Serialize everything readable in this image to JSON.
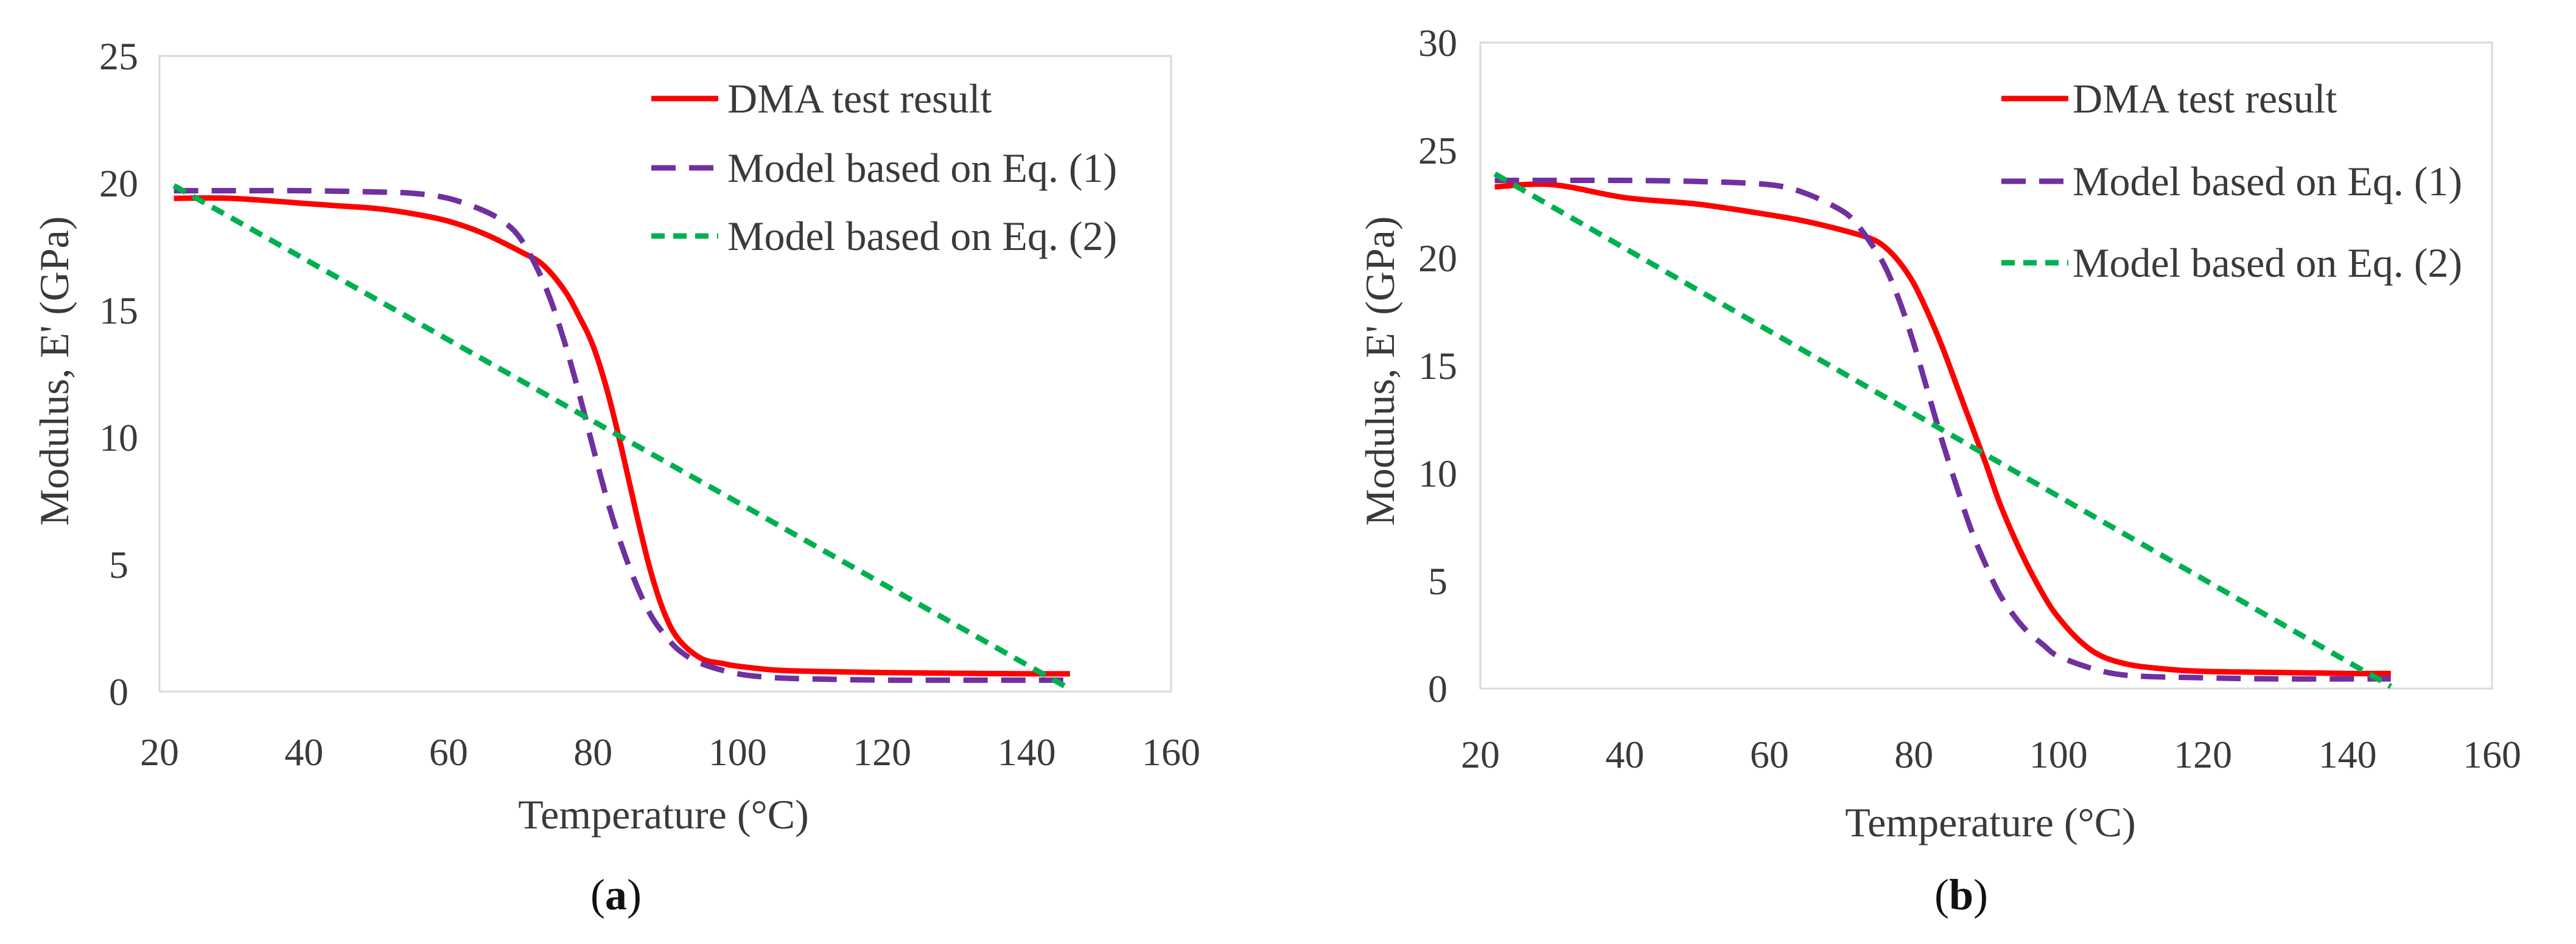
{
  "chart_data": [
    {
      "type": "line",
      "panel_label": "a",
      "xlabel": "Temperature (°C)",
      "ylabel": "Modulus, E' (GPa)",
      "xlim": [
        20,
        160
      ],
      "ylim": [
        0,
        25
      ],
      "xticks": [
        20,
        40,
        60,
        80,
        100,
        120,
        140,
        160
      ],
      "yticks": [
        0,
        5,
        10,
        15,
        20,
        25
      ],
      "grid": false,
      "legend_position": "top-right",
      "series": [
        {
          "name": "DMA test result",
          "style": "solid",
          "color": "#ff0000",
          "x": [
            22,
            30,
            40,
            45,
            50,
            55,
            60,
            65,
            70,
            73,
            76,
            78,
            80,
            82,
            84,
            86,
            88,
            90,
            92,
            95,
            98,
            100,
            105,
            110,
            120,
            130,
            140,
            146
          ],
          "y": [
            19.4,
            19.4,
            19.2,
            19.1,
            19.0,
            18.8,
            18.5,
            18.0,
            17.3,
            16.8,
            15.8,
            14.8,
            13.6,
            11.8,
            9.5,
            7.0,
            4.7,
            3.0,
            2.0,
            1.3,
            1.1,
            1.0,
            0.85,
            0.8,
            0.75,
            0.72,
            0.7,
            0.7
          ]
        },
        {
          "name": "Model based on Eq. (1)",
          "style": "dash",
          "color": "#7030a0",
          "x": [
            22,
            30,
            40,
            50,
            55,
            60,
            65,
            68,
            70,
            72,
            74,
            76,
            78,
            80,
            82,
            84,
            86,
            88,
            90,
            92,
            95,
            100,
            105,
            110,
            120,
            130,
            146
          ],
          "y": [
            19.7,
            19.7,
            19.7,
            19.65,
            19.6,
            19.4,
            18.9,
            18.4,
            17.8,
            16.8,
            15.5,
            13.8,
            11.8,
            9.6,
            7.5,
            5.7,
            4.2,
            3.0,
            2.2,
            1.6,
            1.1,
            0.7,
            0.55,
            0.5,
            0.45,
            0.45,
            0.45
          ]
        },
        {
          "name": "Model based on Eq. (2)",
          "style": "short-dash",
          "color": "#00b050",
          "x": [
            22,
            146
          ],
          "y": [
            19.9,
            0.1
          ]
        }
      ]
    },
    {
      "type": "line",
      "panel_label": "b",
      "xlabel": "Temperature (°C)",
      "ylabel": "Modulus, E' (GPa)",
      "xlim": [
        20,
        160
      ],
      "ylim": [
        0,
        30
      ],
      "xticks": [
        20,
        40,
        60,
        80,
        100,
        120,
        140,
        160
      ],
      "yticks": [
        0,
        5,
        10,
        15,
        20,
        25,
        30
      ],
      "grid": false,
      "legend_position": "top-right",
      "series": [
        {
          "name": "DMA test result",
          "style": "solid",
          "color": "#ff0000",
          "x": [
            22,
            30,
            40,
            50,
            60,
            65,
            70,
            74,
            76,
            78,
            80,
            82,
            84,
            86,
            88,
            90,
            92,
            95,
            98,
            100,
            103,
            106,
            110,
            115,
            120,
            130,
            140,
            146
          ],
          "y": [
            23.3,
            23.4,
            22.8,
            22.5,
            22.0,
            21.7,
            21.3,
            20.9,
            20.5,
            19.8,
            18.8,
            17.4,
            15.8,
            14.0,
            12.2,
            10.4,
            8.5,
            6.2,
            4.3,
            3.3,
            2.2,
            1.5,
            1.1,
            0.9,
            0.8,
            0.75,
            0.7,
            0.7
          ]
        },
        {
          "name": "Model based on Eq. (1)",
          "style": "dash",
          "color": "#7030a0",
          "x": [
            22,
            30,
            40,
            50,
            60,
            65,
            70,
            72,
            74,
            76,
            78,
            80,
            82,
            84,
            86,
            88,
            90,
            92,
            95,
            98,
            100,
            105,
            110,
            120,
            130,
            146
          ],
          "y": [
            23.6,
            23.6,
            23.6,
            23.55,
            23.4,
            23.0,
            22.2,
            21.6,
            20.7,
            19.6,
            18.0,
            16.0,
            13.7,
            11.4,
            9.3,
            7.3,
            5.7,
            4.3,
            2.9,
            2.0,
            1.5,
            0.9,
            0.6,
            0.5,
            0.45,
            0.45
          ]
        },
        {
          "name": "Model based on Eq. (2)",
          "style": "short-dash",
          "color": "#00b050",
          "x": [
            22,
            146
          ],
          "y": [
            23.9,
            0.1
          ]
        }
      ]
    }
  ]
}
